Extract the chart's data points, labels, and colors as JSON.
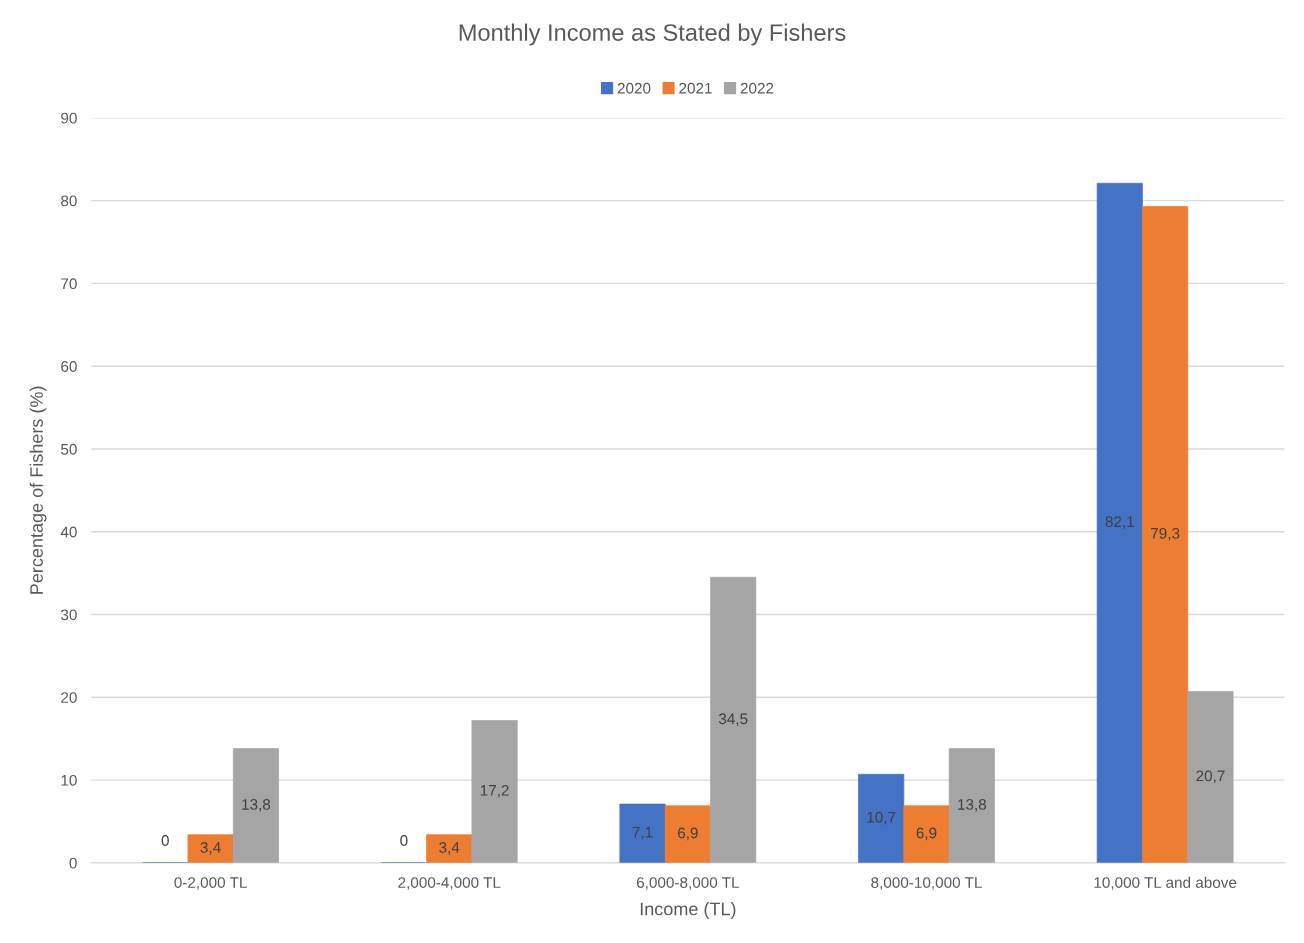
{
  "chart_data": {
    "type": "bar",
    "title": "Monthly Income as Stated by Fishers",
    "xlabel": "Income (TL)",
    "ylabel": "Percentage of Fishers (%)",
    "categories": [
      "0-2,000 TL",
      "2,000-4,000 TL",
      "6,000-8,000 TL",
      "8,000-10,000 TL",
      "10,000 TL and above"
    ],
    "series": [
      {
        "name": "2020",
        "color": "#4472c4",
        "values": [
          0,
          0,
          7.1,
          10.7,
          82.1
        ],
        "value_labels": [
          "0",
          "0",
          "7,1",
          "10,7",
          "82,1"
        ]
      },
      {
        "name": "2021",
        "color": "#ed7d31",
        "values": [
          3.4,
          3.4,
          6.9,
          6.9,
          79.3
        ],
        "value_labels": [
          "3,4",
          "3,4",
          "6,9",
          "6,9",
          "79,3"
        ]
      },
      {
        "name": "2022",
        "color": "#a5a5a5",
        "values": [
          13.8,
          17.2,
          34.5,
          13.8,
          20.7
        ],
        "value_labels": [
          "13,8",
          "17,2",
          "34,5",
          "13,8",
          "20,7"
        ]
      }
    ],
    "ylim": [
      0,
      90
    ],
    "yticks": [
      0,
      10,
      20,
      30,
      40,
      50,
      60,
      70,
      80,
      90
    ],
    "grid": "y",
    "legend": "top"
  }
}
